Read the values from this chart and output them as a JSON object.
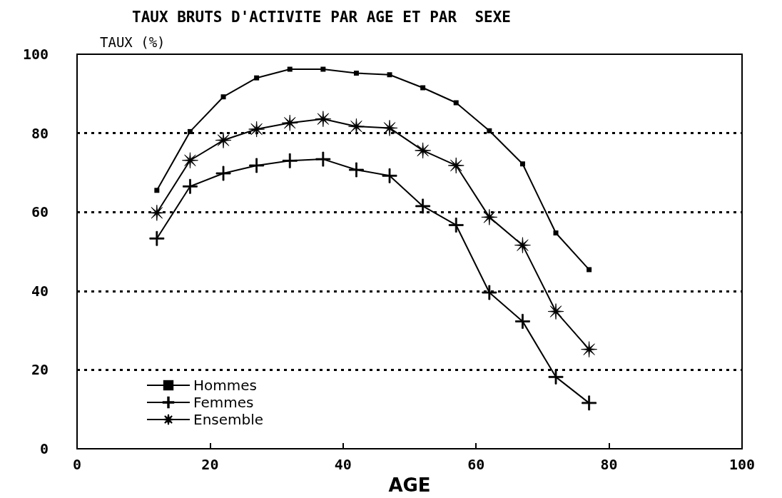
{
  "chart_data": {
    "type": "line",
    "title": "TAUX BRUTS D'ACTIVITE PAR AGE ET PAR  SEXE",
    "ylabel": "TAUX (%)",
    "xlabel": "AGE",
    "x": [
      12,
      17,
      22,
      27,
      32,
      37,
      42,
      47,
      52,
      57,
      62,
      67,
      72,
      77
    ],
    "series": [
      {
        "name": "Hommes",
        "color": "#000000",
        "marker": "square",
        "values": [
          65.5,
          80.4,
          89.2,
          94,
          96.2,
          96.2,
          95.2,
          94.8,
          91.5,
          87.7,
          80.6,
          72.2,
          54.7,
          45.4
        ]
      },
      {
        "name": "Femmes",
        "color": "#000000",
        "marker": "cross",
        "values": [
          53.3,
          66.5,
          69.8,
          71.8,
          73,
          73.4,
          70.7,
          69.2,
          61.5,
          56.7,
          39.6,
          32.3,
          18.2,
          11.6
        ]
      },
      {
        "name": "Ensemble",
        "color": "#000000",
        "marker": "star",
        "values": [
          59.8,
          73.1,
          78.2,
          81,
          82.6,
          83.6,
          81.7,
          81.3,
          75.6,
          71.8,
          58.7,
          51.6,
          34.8,
          25.2
        ]
      }
    ],
    "xlim": [
      0,
      100
    ],
    "xticks": [
      0,
      20,
      40,
      60,
      80,
      100
    ],
    "ylim": [
      0,
      100
    ],
    "yticks": [
      0,
      20,
      40,
      60,
      80,
      100
    ],
    "grid": "y",
    "legend": "bottom left",
    "line_style": "solid"
  }
}
